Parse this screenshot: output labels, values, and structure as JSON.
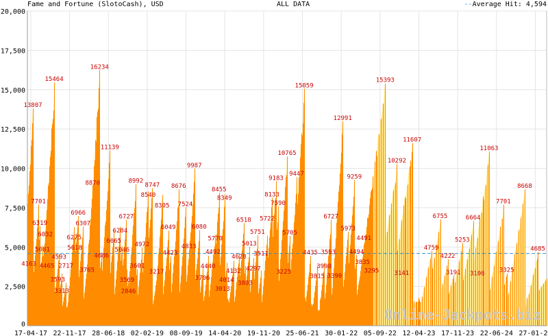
{
  "header": {
    "title": "Fame and Fortune (SlotoCash), USD",
    "center": "ALL DATA",
    "average_label": "Average Hit: 4,594",
    "average_dash": "--"
  },
  "watermark": "Online-Jackpots.biz",
  "colors": {
    "fill": "#ffe98a",
    "line": "#ff8c00",
    "label": "#cc0000",
    "average": "#3a8fc8",
    "grid": "#e4e4e4"
  },
  "chart_data": {
    "type": "area",
    "title": "Fame and Fortune (SlotoCash), USD",
    "subtitle": "ALL DATA",
    "xlabel": "",
    "ylabel": "",
    "x_unit": "days since axis start",
    "xlim": [
      0,
      2930
    ],
    "ylim": [
      0,
      20000
    ],
    "grid": true,
    "average": 4594,
    "y_ticks": [
      {
        "value": 0,
        "label": "0"
      },
      {
        "value": 2500,
        "label": "2,500"
      },
      {
        "value": 5000,
        "label": "5,000"
      },
      {
        "value": 7500,
        "label": "7,500"
      },
      {
        "value": 10000,
        "label": "10,000"
      },
      {
        "value": 12500,
        "label": "12,500"
      },
      {
        "value": 15000,
        "label": "15,000"
      },
      {
        "value": 17500,
        "label": "17,500"
      },
      {
        "value": 20000,
        "label": "20,000"
      }
    ],
    "x_ticks": [
      {
        "value": 19,
        "label": "17-04-17"
      },
      {
        "value": 238,
        "label": "22-11-17"
      },
      {
        "value": 457,
        "label": "28-06-18"
      },
      {
        "value": 676,
        "label": "02-02-19"
      },
      {
        "value": 895,
        "label": "08-09-19"
      },
      {
        "value": 1114,
        "label": "14-04-20"
      },
      {
        "value": 1333,
        "label": "19-11-20"
      },
      {
        "value": 1552,
        "label": "25-06-21"
      },
      {
        "value": 1771,
        "label": "30-01-22"
      },
      {
        "value": 1990,
        "label": "05-09-22"
      },
      {
        "value": 2209,
        "label": "12-04-23"
      },
      {
        "value": 2428,
        "label": "17-11-23"
      },
      {
        "value": 2647,
        "label": "22-06-24"
      },
      {
        "value": 2866,
        "label": "27-01-25"
      }
    ],
    "peaks": [
      {
        "x": 8,
        "value": 4163,
        "label": "4163"
      },
      {
        "x": 31,
        "value": 13807,
        "label": "13807"
      },
      {
        "x": 62,
        "value": 7701,
        "label": "7701"
      },
      {
        "x": 70,
        "value": 6319,
        "label": "6319"
      },
      {
        "x": 85,
        "value": 5081,
        "label": "5081"
      },
      {
        "x": 101,
        "value": 6032,
        "label": "6032"
      },
      {
        "x": 110,
        "value": 4465,
        "label": "4465"
      },
      {
        "x": 151,
        "value": 15464,
        "label": "15464"
      },
      {
        "x": 171,
        "value": 3593,
        "label": "3593"
      },
      {
        "x": 178,
        "value": 4593,
        "label": "4593"
      },
      {
        "x": 194,
        "value": 3313,
        "label": "3313"
      },
      {
        "x": 217,
        "value": 2717,
        "label": "2717"
      },
      {
        "x": 264,
        "value": 6275,
        "label": "6275"
      },
      {
        "x": 267,
        "value": 5618,
        "label": "5618"
      },
      {
        "x": 287,
        "value": 6966,
        "label": "6966"
      },
      {
        "x": 314,
        "value": 6307,
        "label": "6307"
      },
      {
        "x": 337,
        "value": 3765,
        "label": "3765"
      },
      {
        "x": 368,
        "value": 8870,
        "label": "8870"
      },
      {
        "x": 407,
        "value": 16234,
        "label": "16234"
      },
      {
        "x": 419,
        "value": 4686,
        "label": "4686"
      },
      {
        "x": 465,
        "value": 11139,
        "label": "11139"
      },
      {
        "x": 488,
        "value": 6065,
        "label": "6065"
      },
      {
        "x": 523,
        "value": 6284,
        "label": "6284"
      },
      {
        "x": 535,
        "value": 5046,
        "label": "5046"
      },
      {
        "x": 558,
        "value": 6727,
        "label": "6727"
      },
      {
        "x": 562,
        "value": 3569,
        "label": "3569"
      },
      {
        "x": 570,
        "value": 2846,
        "label": "2846"
      },
      {
        "x": 612,
        "value": 8992,
        "label": "8992"
      },
      {
        "x": 620,
        "value": 3601,
        "label": "3601"
      },
      {
        "x": 647,
        "value": 4972,
        "label": "4972"
      },
      {
        "x": 682,
        "value": 8540,
        "label": "8540"
      },
      {
        "x": 705,
        "value": 8747,
        "label": "8747"
      },
      {
        "x": 729,
        "value": 3217,
        "label": "3217"
      },
      {
        "x": 760,
        "value": 8305,
        "label": "8305"
      },
      {
        "x": 795,
        "value": 6049,
        "label": "6049"
      },
      {
        "x": 806,
        "value": 4423,
        "label": "4423"
      },
      {
        "x": 853,
        "value": 8676,
        "label": "8676"
      },
      {
        "x": 891,
        "value": 7524,
        "label": "7524"
      },
      {
        "x": 911,
        "value": 4833,
        "label": "4833"
      },
      {
        "x": 942,
        "value": 9987,
        "label": "9987"
      },
      {
        "x": 969,
        "value": 6080,
        "label": "6080"
      },
      {
        "x": 988,
        "value": 3706,
        "label": "3706"
      },
      {
        "x": 1019,
        "value": 4440,
        "label": "4440"
      },
      {
        "x": 1047,
        "value": 4492,
        "label": "4492"
      },
      {
        "x": 1060,
        "value": 5770,
        "label": "5770"
      },
      {
        "x": 1081,
        "value": 8455,
        "label": "8455"
      },
      {
        "x": 1101,
        "value": 3013,
        "label": "3013"
      },
      {
        "x": 1112,
        "value": 8349,
        "label": "8349"
      },
      {
        "x": 1124,
        "value": 4014,
        "label": "4014"
      },
      {
        "x": 1163,
        "value": 4132,
        "label": "4132"
      },
      {
        "x": 1194,
        "value": 4628,
        "label": "4628"
      },
      {
        "x": 1221,
        "value": 6518,
        "label": "6518"
      },
      {
        "x": 1229,
        "value": 3803,
        "label": "3803"
      },
      {
        "x": 1252,
        "value": 5013,
        "label": "5013"
      },
      {
        "x": 1275,
        "value": 4297,
        "label": "4297"
      },
      {
        "x": 1298,
        "value": 5751,
        "label": "5751"
      },
      {
        "x": 1318,
        "value": 3511,
        "label": "3511"
      },
      {
        "x": 1353,
        "value": 5722,
        "label": "5722"
      },
      {
        "x": 1380,
        "value": 8133,
        "label": "8133"
      },
      {
        "x": 1403,
        "value": 9183,
        "label": "9183"
      },
      {
        "x": 1415,
        "value": 7590,
        "label": "7590"
      },
      {
        "x": 1446,
        "value": 3225,
        "label": "3225"
      },
      {
        "x": 1465,
        "value": 10765,
        "label": "10765"
      },
      {
        "x": 1481,
        "value": 5705,
        "label": "5705"
      },
      {
        "x": 1519,
        "value": 9447,
        "label": "9447"
      },
      {
        "x": 1562,
        "value": 15059,
        "label": "15059"
      },
      {
        "x": 1597,
        "value": 4435,
        "label": "4435"
      },
      {
        "x": 1636,
        "value": 3815,
        "label": "3815"
      },
      {
        "x": 1674,
        "value": 3998,
        "label": "3998"
      },
      {
        "x": 1698,
        "value": 3593,
        "label": "3593"
      },
      {
        "x": 1713,
        "value": 6727,
        "label": "6727"
      },
      {
        "x": 1733,
        "value": 3390,
        "label": "3390"
      },
      {
        "x": 1779,
        "value": 12991,
        "label": "12991"
      },
      {
        "x": 1810,
        "value": 5973,
        "label": "5973"
      },
      {
        "x": 1845,
        "value": 9259,
        "label": "9259"
      },
      {
        "x": 1857,
        "value": 4494,
        "label": "4494"
      },
      {
        "x": 1891,
        "value": 3835,
        "label": "3835"
      },
      {
        "x": 1899,
        "value": 4491,
        "label": "4491"
      },
      {
        "x": 1942,
        "value": 3295,
        "label": "3295"
      },
      {
        "x": 2019,
        "value": 15393,
        "label": "15393"
      },
      {
        "x": 2085,
        "value": 10292,
        "label": "10292"
      },
      {
        "x": 2112,
        "value": 3141,
        "label": "3141"
      },
      {
        "x": 2171,
        "value": 11607,
        "label": "11607"
      },
      {
        "x": 2279,
        "value": 4759,
        "label": "4759"
      },
      {
        "x": 2329,
        "value": 6755,
        "label": "6755"
      },
      {
        "x": 2372,
        "value": 4222,
        "label": "4222"
      },
      {
        "x": 2403,
        "value": 3191,
        "label": "3191"
      },
      {
        "x": 2454,
        "value": 5253,
        "label": "5253"
      },
      {
        "x": 2515,
        "value": 6664,
        "label": "6664"
      },
      {
        "x": 2539,
        "value": 3106,
        "label": "3106"
      },
      {
        "x": 2605,
        "value": 11063,
        "label": "11063"
      },
      {
        "x": 2686,
        "value": 7701,
        "label": "7701"
      },
      {
        "x": 2705,
        "value": 3325,
        "label": "3325"
      },
      {
        "x": 2806,
        "value": 8668,
        "label": "8668"
      },
      {
        "x": 2880,
        "value": 4685,
        "label": "4685"
      }
    ]
  }
}
